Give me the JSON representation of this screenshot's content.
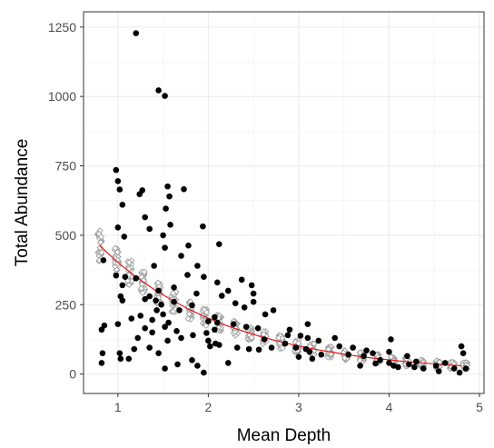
{
  "chart_data": {
    "type": "scatter",
    "title": "",
    "xlabel": "Mean Depth",
    "ylabel": "Total Abundance",
    "xlim": [
      0.62,
      5.05
    ],
    "ylim": [
      -70,
      1305
    ],
    "x_ticks": [
      1,
      2,
      3,
      4,
      5
    ],
    "y_ticks": [
      0,
      250,
      500,
      750,
      1000,
      1250
    ],
    "grid": true,
    "legend": "none",
    "colors": {
      "observed": "#000000",
      "simulated": "#9e9e9e",
      "fit": "#e31a1c",
      "grid_major": "#ebebeb",
      "grid_minor": "#f5f5f5",
      "panel_border": "#333333"
    },
    "fit_curve": {
      "x": [
        0.8,
        1.0,
        1.2,
        1.4,
        1.6,
        1.8,
        2.0,
        2.2,
        2.4,
        2.6,
        2.8,
        3.0,
        3.2,
        3.4,
        3.6,
        3.8,
        4.0,
        4.2,
        4.4,
        4.6,
        4.8
      ],
      "y": [
        462,
        402,
        350,
        305,
        266,
        231,
        201,
        175,
        153,
        133,
        116,
        101,
        88,
        77,
        67,
        58,
        51,
        44,
        39,
        34,
        30
      ]
    },
    "observed_points": [
      {
        "x": 1.2,
        "y": 1228
      },
      {
        "x": 1.45,
        "y": 1022
      },
      {
        "x": 1.52,
        "y": 1002
      },
      {
        "x": 0.98,
        "y": 735
      },
      {
        "x": 1.0,
        "y": 695
      },
      {
        "x": 1.02,
        "y": 665
      },
      {
        "x": 1.05,
        "y": 610
      },
      {
        "x": 1.27,
        "y": 662
      },
      {
        "x": 1.24,
        "y": 648
      },
      {
        "x": 1.55,
        "y": 676
      },
      {
        "x": 1.57,
        "y": 640
      },
      {
        "x": 1.73,
        "y": 666
      },
      {
        "x": 1.53,
        "y": 596
      },
      {
        "x": 1.3,
        "y": 565
      },
      {
        "x": 1.35,
        "y": 523
      },
      {
        "x": 1.58,
        "y": 538
      },
      {
        "x": 1.94,
        "y": 532
      },
      {
        "x": 1.0,
        "y": 528
      },
      {
        "x": 1.5,
        "y": 500
      },
      {
        "x": 1.07,
        "y": 495
      },
      {
        "x": 1.52,
        "y": 455
      },
      {
        "x": 2.12,
        "y": 468
      },
      {
        "x": 0.84,
        "y": 410
      },
      {
        "x": 0.98,
        "y": 355
      },
      {
        "x": 1.08,
        "y": 350
      },
      {
        "x": 1.78,
        "y": 463
      },
      {
        "x": 1.7,
        "y": 426
      },
      {
        "x": 1.88,
        "y": 390
      },
      {
        "x": 1.77,
        "y": 357
      },
      {
        "x": 1.95,
        "y": 350
      },
      {
        "x": 1.62,
        "y": 312
      },
      {
        "x": 1.45,
        "y": 300
      },
      {
        "x": 1.35,
        "y": 280
      },
      {
        "x": 1.03,
        "y": 280
      },
      {
        "x": 1.05,
        "y": 265
      },
      {
        "x": 1.3,
        "y": 270
      },
      {
        "x": 1.42,
        "y": 265
      },
      {
        "x": 1.48,
        "y": 250
      },
      {
        "x": 1.43,
        "y": 230
      },
      {
        "x": 1.5,
        "y": 215
      },
      {
        "x": 1.25,
        "y": 210
      },
      {
        "x": 1.15,
        "y": 200
      },
      {
        "x": 1.38,
        "y": 195
      },
      {
        "x": 1.68,
        "y": 230
      },
      {
        "x": 1.82,
        "y": 248
      },
      {
        "x": 1.56,
        "y": 185
      },
      {
        "x": 0.85,
        "y": 175
      },
      {
        "x": 0.82,
        "y": 160
      },
      {
        "x": 1.0,
        "y": 180
      },
      {
        "x": 1.3,
        "y": 165
      },
      {
        "x": 1.52,
        "y": 170
      },
      {
        "x": 1.65,
        "y": 155
      },
      {
        "x": 1.38,
        "y": 150
      },
      {
        "x": 1.22,
        "y": 130
      },
      {
        "x": 1.55,
        "y": 120
      },
      {
        "x": 1.7,
        "y": 130
      },
      {
        "x": 1.83,
        "y": 140
      },
      {
        "x": 1.98,
        "y": 148
      },
      {
        "x": 2.07,
        "y": 160
      },
      {
        "x": 2.22,
        "y": 300
      },
      {
        "x": 2.15,
        "y": 282
      },
      {
        "x": 2.3,
        "y": 255
      },
      {
        "x": 2.4,
        "y": 240
      },
      {
        "x": 2.37,
        "y": 340
      },
      {
        "x": 2.48,
        "y": 320
      },
      {
        "x": 2.5,
        "y": 290
      },
      {
        "x": 2.5,
        "y": 260
      },
      {
        "x": 2.72,
        "y": 230
      },
      {
        "x": 2.63,
        "y": 215
      },
      {
        "x": 2.07,
        "y": 205
      },
      {
        "x": 2.0,
        "y": 190
      },
      {
        "x": 2.1,
        "y": 185
      },
      {
        "x": 2.28,
        "y": 180
      },
      {
        "x": 2.42,
        "y": 170
      },
      {
        "x": 2.55,
        "y": 165
      },
      {
        "x": 2.0,
        "y": 120
      },
      {
        "x": 2.08,
        "y": 110
      },
      {
        "x": 2.02,
        "y": 100
      },
      {
        "x": 2.12,
        "y": 105
      },
      {
        "x": 2.32,
        "y": 95
      },
      {
        "x": 2.45,
        "y": 90
      },
      {
        "x": 2.56,
        "y": 88
      },
      {
        "x": 2.62,
        "y": 125
      },
      {
        "x": 2.85,
        "y": 110
      },
      {
        "x": 2.7,
        "y": 95
      },
      {
        "x": 1.35,
        "y": 95
      },
      {
        "x": 1.18,
        "y": 90
      },
      {
        "x": 1.45,
        "y": 75
      },
      {
        "x": 1.02,
        "y": 75
      },
      {
        "x": 0.83,
        "y": 75
      },
      {
        "x": 1.03,
        "y": 55
      },
      {
        "x": 1.12,
        "y": 55
      },
      {
        "x": 1.82,
        "y": 50
      },
      {
        "x": 1.88,
        "y": 30
      },
      {
        "x": 1.95,
        "y": 5
      },
      {
        "x": 1.52,
        "y": 20
      },
      {
        "x": 1.66,
        "y": 35
      },
      {
        "x": 0.82,
        "y": 40
      },
      {
        "x": 2.22,
        "y": 40
      },
      {
        "x": 3.1,
        "y": 130
      },
      {
        "x": 2.9,
        "y": 160
      },
      {
        "x": 2.88,
        "y": 140
      },
      {
        "x": 3.02,
        "y": 138
      },
      {
        "x": 3.22,
        "y": 120
      },
      {
        "x": 2.97,
        "y": 95
      },
      {
        "x": 3.08,
        "y": 90
      },
      {
        "x": 3.12,
        "y": 80
      },
      {
        "x": 3.25,
        "y": 70
      },
      {
        "x": 3.15,
        "y": 55
      },
      {
        "x": 3.0,
        "y": 62
      },
      {
        "x": 3.4,
        "y": 130
      },
      {
        "x": 3.45,
        "y": 100
      },
      {
        "x": 3.55,
        "y": 70
      },
      {
        "x": 3.1,
        "y": 180
      },
      {
        "x": 3.6,
        "y": 95
      },
      {
        "x": 3.72,
        "y": 65
      },
      {
        "x": 3.75,
        "y": 85
      },
      {
        "x": 3.82,
        "y": 75
      },
      {
        "x": 3.68,
        "y": 30
      },
      {
        "x": 3.9,
        "y": 50
      },
      {
        "x": 3.85,
        "y": 38
      },
      {
        "x": 4.0,
        "y": 80
      },
      {
        "x": 4.0,
        "y": 40
      },
      {
        "x": 4.02,
        "y": 125
      },
      {
        "x": 4.05,
        "y": 30
      },
      {
        "x": 4.1,
        "y": 25
      },
      {
        "x": 4.2,
        "y": 65
      },
      {
        "x": 4.22,
        "y": 35
      },
      {
        "x": 4.28,
        "y": 25
      },
      {
        "x": 4.3,
        "y": 45
      },
      {
        "x": 4.38,
        "y": 20
      },
      {
        "x": 4.52,
        "y": 30
      },
      {
        "x": 4.55,
        "y": 10
      },
      {
        "x": 4.72,
        "y": 20
      },
      {
        "x": 4.8,
        "y": 100
      },
      {
        "x": 4.82,
        "y": 75
      },
      {
        "x": 4.85,
        "y": 20
      },
      {
        "x": 4.78,
        "y": 5
      },
      {
        "x": 4.62,
        "y": 40
      },
      {
        "x": 1.05,
        "y": 320
      },
      {
        "x": 1.2,
        "y": 345
      },
      {
        "x": 1.62,
        "y": 260
      },
      {
        "x": 1.87,
        "y": 290
      },
      {
        "x": 1.4,
        "y": 390
      },
      {
        "x": 2.1,
        "y": 330
      }
    ],
    "simulated_summary": {
      "description": "grey open-diamond simulated values clustered around the fitted curve at each sampled depth",
      "x": [
        0.8,
        0.99,
        1.13,
        1.28,
        1.45,
        1.62,
        1.8,
        1.96,
        2.12,
        2.3,
        2.46,
        2.62,
        2.8,
        2.98,
        3.15,
        3.34,
        3.52,
        3.7,
        3.88,
        4.04,
        4.2,
        4.36,
        4.54,
        4.7,
        4.84
      ],
      "center": [
        462,
        404,
        366,
        330,
        293,
        260,
        229,
        206,
        184,
        163,
        145,
        130,
        115,
        101,
        90,
        79,
        69,
        61,
        54,
        48,
        43,
        38,
        34,
        31,
        29
      ],
      "spread": [
        60,
        50,
        45,
        40,
        38,
        36,
        34,
        32,
        30,
        28,
        26,
        25,
        24,
        22,
        21,
        20,
        19,
        18,
        17,
        16,
        15,
        14,
        14,
        13,
        13
      ]
    }
  }
}
